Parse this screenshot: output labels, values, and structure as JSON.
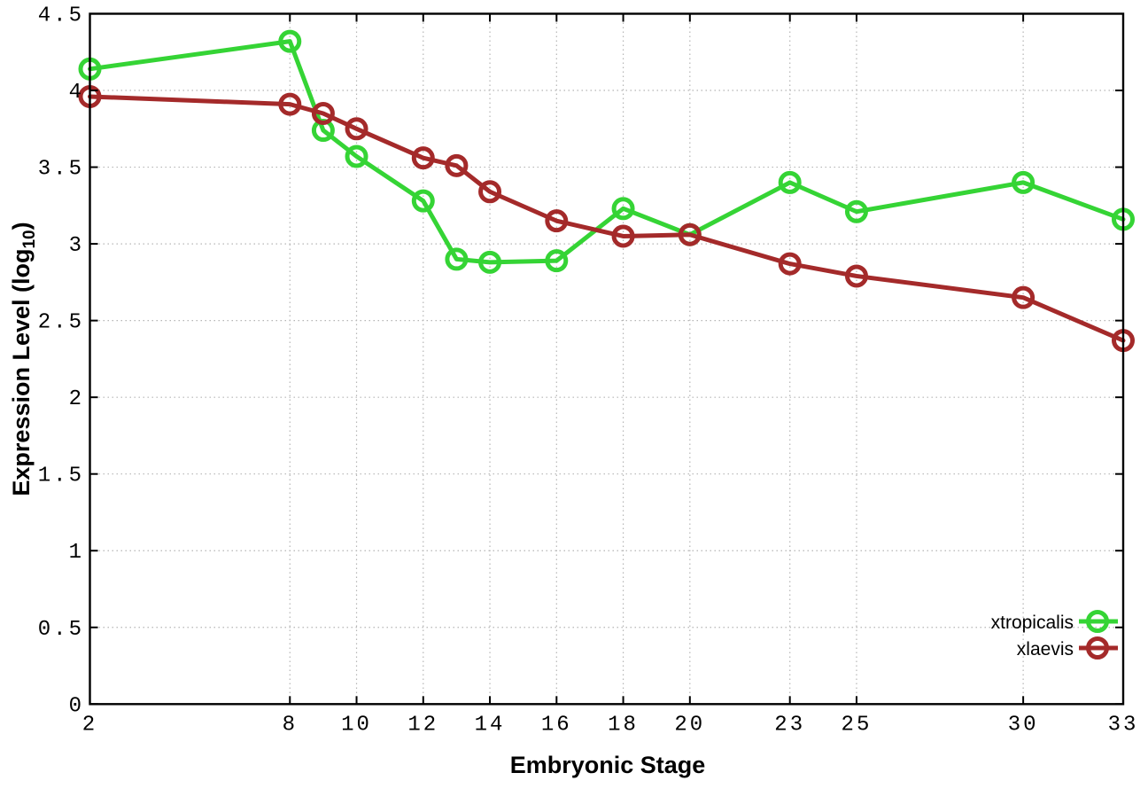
{
  "figure": {
    "background": "#ffffff",
    "border_color": "#000000",
    "grid_color": "#b5b5b5"
  },
  "chart_data": {
    "type": "line",
    "title": "",
    "xlabel": "Embryonic Stage",
    "ylabel": "Expression Level (log10)",
    "ylabel_parts": {
      "pre": "Expression Level (log",
      "sub": "10",
      "post": ")"
    },
    "x": [
      2,
      8,
      9,
      10,
      12,
      13,
      14,
      16,
      18,
      20,
      23,
      25,
      30,
      33
    ],
    "series": [
      {
        "name": "xtropicalis",
        "color": "#35d435",
        "marker": "open-circle",
        "values": [
          4.14,
          4.32,
          3.74,
          3.57,
          3.28,
          2.9,
          2.88,
          2.89,
          3.23,
          3.06,
          3.4,
          3.21,
          3.4,
          3.16
        ]
      },
      {
        "name": "xlaevis",
        "color": "#a42a2a",
        "marker": "open-circle",
        "values": [
          3.96,
          3.91,
          3.85,
          3.75,
          3.56,
          3.51,
          3.34,
          3.15,
          3.05,
          3.06,
          2.87,
          2.79,
          2.65,
          2.37
        ]
      }
    ],
    "x_ticks": [
      2,
      8,
      10,
      12,
      14,
      16,
      18,
      20,
      23,
      25,
      30,
      33
    ],
    "y_ticks": [
      0,
      0.5,
      1,
      1.5,
      2,
      2.5,
      3,
      3.5,
      4,
      4.5
    ],
    "xlim": [
      2,
      33
    ],
    "ylim": [
      0,
      4.5
    ],
    "grid": true,
    "legend": {
      "position": "bottom-right-inside",
      "entries": [
        "xtropicalis",
        "xlaevis"
      ]
    }
  }
}
